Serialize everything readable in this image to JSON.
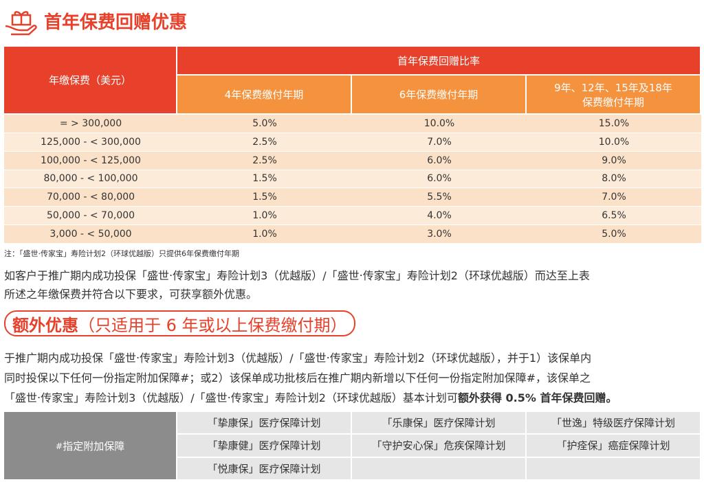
{
  "title": "首年保费回赠优惠",
  "table": {
    "row_header": "年缴保费（美元）",
    "group_header": "首年保费回赠比率",
    "columns": [
      "4年保费缴付年期",
      "6年保费缴付年期",
      "9年、12年、15年及18年\n保费缴付年期"
    ],
    "rows": [
      [
        "= > 300,000",
        "5.0%",
        "10.0%",
        "15.0%"
      ],
      [
        "125,000 - < 300,000",
        "2.5%",
        "7.0%",
        "10.0%"
      ],
      [
        "100,000 - < 125,000",
        "2.5%",
        "6.0%",
        "9.0%"
      ],
      [
        "80,000 - < 100,000",
        "1.5%",
        "6.0%",
        "8.0%"
      ],
      [
        "70,000 - < 80,000",
        "1.5%",
        "5.5%",
        "7.0%"
      ],
      [
        "50,000 - < 70,000",
        "1.0%",
        "4.0%",
        "6.5%"
      ],
      [
        "3,000 - < 50,000",
        "1.0%",
        "3.0%",
        "5.0%"
      ]
    ]
  },
  "note": "注：「盛世‧传家宝」寿险计划2（环球优越版）只提供6年保费缴付年期",
  "intro": [
    "如客户于推广期内成功投保「盛世‧传家宝」寿险计划3（优越版）/「盛世‧传家宝」寿险计划2（环球优越版）而达至上表",
    "所述之年缴保费并符合以下要求，可获享额外优惠。"
  ],
  "extra": {
    "heading": "额外优惠",
    "subheading": "（只适用于 6 年或以上保费缴付期）",
    "lines": [
      "于推广期内成功投保「盛世‧传家宝」寿险计划3（优越版）/「盛世‧传家宝」寿险计划2（环球优越版），并于1）该保单内",
      "同时投保以下任何一份指定附加保障#；或2）该保单成功批核后在推广期内新增以下任何一份指定附加保障#，该保单之",
      "「盛世‧传家宝」寿险计划3（优越版）/「盛世‧传家宝」寿险计划2（环球优越版）基本计划可"
    ],
    "bold": "额外获得 0.5% 首年保费回赠。"
  },
  "addon": {
    "marker": "#",
    "label": "指定附加保障",
    "plans": [
      [
        "「挚康保」医疗保障计划",
        "「乐康保」医疗保障计划",
        "「世逸」特级医疗保障计划"
      ],
      [
        "「挚康健」医疗保障计划",
        "「守护安心保」危疾保障计划",
        "「护痊保」癌症保障计划"
      ],
      [
        "「悦康保」医疗保障计划"
      ]
    ]
  }
}
